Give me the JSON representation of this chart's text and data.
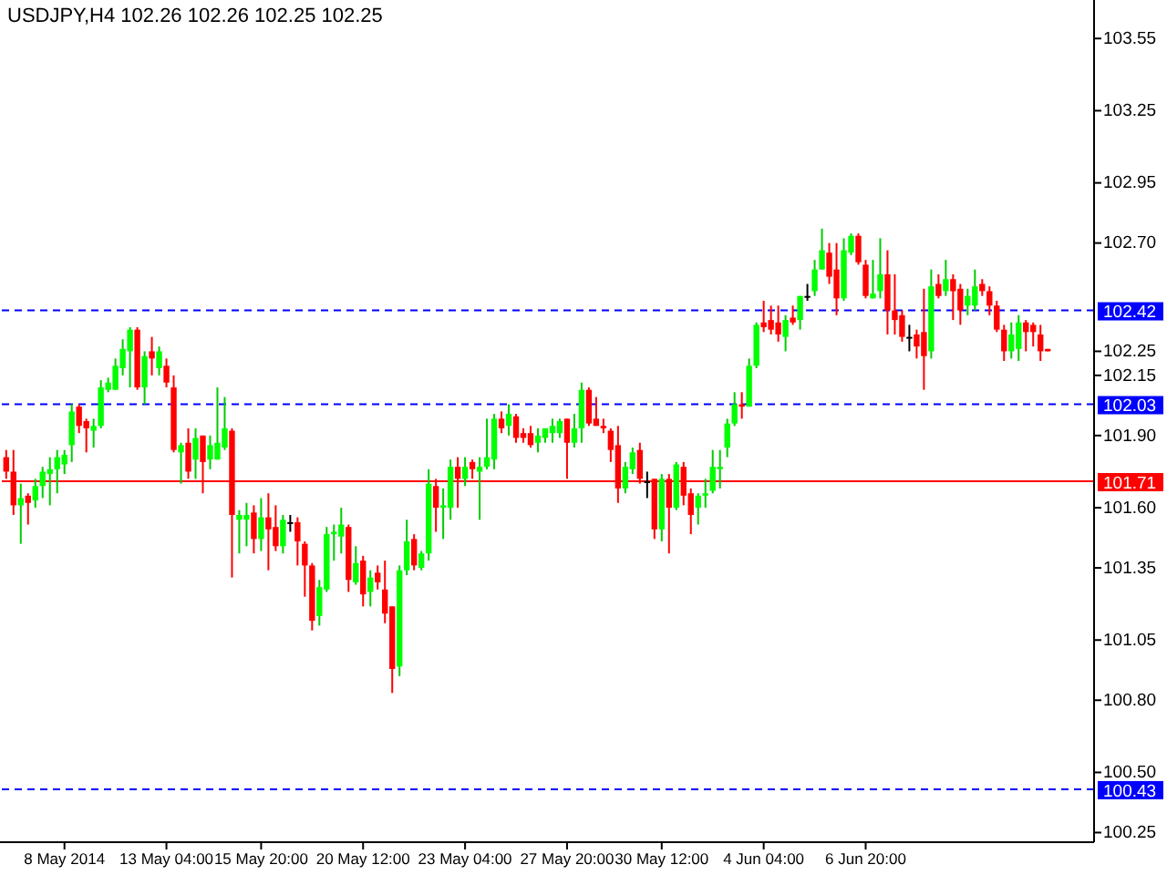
{
  "chart_data": {
    "type": "candlestick",
    "title": "USDJPY,H4  102.26 102.26 102.25 102.25",
    "categories": [
      null,
      null,
      null,
      null,
      null,
      null,
      null,
      null,
      "8 May 2014",
      null,
      null,
      null,
      null,
      null,
      null,
      null,
      null,
      null,
      null,
      null,
      null,
      null,
      "13 May 04:00",
      null,
      null,
      null,
      null,
      null,
      null,
      null,
      null,
      null,
      null,
      null,
      null,
      "15 May 20:00",
      null,
      null,
      null,
      null,
      null,
      null,
      null,
      null,
      null,
      null,
      null,
      null,
      null,
      "20 May 12:00",
      null,
      null,
      null,
      null,
      null,
      null,
      null,
      null,
      null,
      null,
      null,
      null,
      null,
      "23 May 04:00",
      null,
      null,
      null,
      null,
      null,
      null,
      null,
      null,
      null,
      null,
      null,
      null,
      null,
      "27 May 20:00",
      null,
      null,
      null,
      null,
      null,
      null,
      null,
      null,
      null,
      null,
      null,
      null,
      "30 May 12:00",
      null,
      null,
      null,
      null,
      null,
      null,
      null,
      null,
      null,
      null,
      null,
      null,
      null,
      "4 Jun 04:00",
      null,
      null,
      null,
      null,
      null,
      null,
      null,
      null,
      null,
      null,
      null,
      null,
      null,
      "6 Jun 20:00",
      null,
      null,
      null,
      null,
      null,
      null,
      null,
      null,
      null,
      null,
      null,
      null,
      null,
      null,
      null,
      null,
      null,
      null,
      null,
      null,
      null,
      null,
      null,
      null,
      null
    ],
    "ohlc": [
      [
        101.81,
        101.84,
        101.72,
        101.75
      ],
      [
        101.75,
        101.84,
        101.57,
        101.61
      ],
      [
        101.61,
        101.7,
        101.45,
        101.64
      ],
      [
        101.65,
        101.66,
        101.53,
        101.62
      ],
      [
        101.63,
        101.72,
        101.6,
        101.69
      ],
      [
        101.69,
        101.77,
        101.64,
        101.75
      ],
      [
        101.74,
        101.81,
        101.61,
        101.76
      ],
      [
        101.76,
        101.84,
        101.66,
        101.81
      ],
      [
        101.78,
        101.84,
        101.74,
        101.82
      ],
      [
        101.86,
        102.03,
        101.79,
        102.0
      ],
      [
        102.02,
        102.03,
        101.91,
        101.94
      ],
      [
        101.96,
        101.97,
        101.83,
        101.93
      ],
      [
        101.92,
        101.97,
        101.85,
        101.94
      ],
      [
        101.94,
        102.13,
        101.93,
        102.1
      ],
      [
        102.09,
        102.14,
        102.08,
        102.12
      ],
      [
        102.09,
        102.22,
        102.09,
        102.19
      ],
      [
        102.18,
        102.3,
        102.15,
        102.26
      ],
      [
        102.25,
        102.35,
        102.1,
        102.34
      ],
      [
        102.34,
        102.35,
        102.09,
        102.1
      ],
      [
        102.1,
        102.25,
        102.03,
        102.23
      ],
      [
        102.25,
        102.31,
        102.15,
        102.22
      ],
      [
        102.18,
        102.27,
        102.15,
        102.25
      ],
      [
        102.19,
        102.22,
        102.1,
        102.12
      ],
      [
        102.1,
        102.15,
        101.83,
        101.84
      ],
      [
        101.83,
        101.87,
        101.7,
        101.86
      ],
      [
        101.87,
        101.93,
        101.72,
        101.75
      ],
      [
        101.8,
        101.93,
        101.72,
        101.89
      ],
      [
        101.9,
        101.9,
        101.66,
        101.79
      ],
      [
        101.8,
        101.9,
        101.76,
        101.86
      ],
      [
        101.8,
        102.1,
        101.8,
        101.87
      ],
      [
        101.85,
        102.06,
        101.84,
        101.93
      ],
      [
        101.92,
        101.93,
        101.31,
        101.57
      ],
      [
        101.55,
        101.59,
        101.41,
        101.57
      ],
      [
        101.55,
        101.62,
        101.44,
        101.57
      ],
      [
        101.58,
        101.61,
        101.41,
        101.47
      ],
      [
        101.47,
        101.64,
        101.42,
        101.56
      ],
      [
        101.56,
        101.66,
        101.34,
        101.51
      ],
      [
        101.52,
        101.61,
        101.42,
        101.44
      ],
      [
        101.44,
        101.57,
        101.41,
        101.55
      ],
      [
        101.54,
        101.57,
        101.5,
        101.54
      ],
      [
        101.54,
        101.56,
        101.36,
        101.46
      ],
      [
        101.45,
        101.46,
        101.23,
        101.36
      ],
      [
        101.36,
        101.37,
        101.09,
        101.13
      ],
      [
        101.15,
        101.3,
        101.11,
        101.27
      ],
      [
        101.26,
        101.52,
        101.25,
        101.49
      ],
      [
        101.49,
        101.53,
        101.38,
        101.5
      ],
      [
        101.48,
        101.6,
        101.41,
        101.53
      ],
      [
        101.52,
        101.53,
        101.25,
        101.3
      ],
      [
        101.29,
        101.44,
        101.28,
        101.37
      ],
      [
        101.38,
        101.4,
        101.19,
        101.24
      ],
      [
        101.25,
        101.34,
        101.19,
        101.31
      ],
      [
        101.33,
        101.36,
        101.26,
        101.29
      ],
      [
        101.26,
        101.38,
        101.12,
        101.16
      ],
      [
        101.19,
        101.19,
        100.83,
        100.93
      ],
      [
        100.94,
        101.36,
        100.9,
        101.34
      ],
      [
        101.34,
        101.55,
        101.32,
        101.46
      ],
      [
        101.47,
        101.49,
        101.34,
        101.36
      ],
      [
        101.35,
        101.42,
        101.34,
        101.41
      ],
      [
        101.41,
        101.76,
        101.38,
        101.7
      ],
      [
        101.69,
        101.72,
        101.5,
        101.6
      ],
      [
        101.6,
        101.68,
        101.47,
        101.61
      ],
      [
        101.6,
        101.8,
        101.55,
        101.77
      ],
      [
        101.77,
        101.81,
        101.6,
        101.72
      ],
      [
        101.72,
        101.81,
        101.69,
        101.77
      ],
      [
        101.79,
        101.8,
        101.72,
        101.76
      ],
      [
        101.75,
        101.81,
        101.55,
        101.77
      ],
      [
        101.77,
        101.97,
        101.76,
        101.81
      ],
      [
        101.8,
        101.99,
        101.76,
        101.97
      ],
      [
        101.97,
        102.0,
        101.91,
        101.93
      ],
      [
        101.94,
        102.03,
        101.9,
        101.99
      ],
      [
        101.98,
        101.99,
        101.87,
        101.89
      ],
      [
        101.91,
        101.93,
        101.87,
        101.89
      ],
      [
        101.91,
        101.94,
        101.85,
        101.86
      ],
      [
        101.87,
        101.93,
        101.83,
        101.9
      ],
      [
        101.89,
        101.93,
        101.87,
        101.93
      ],
      [
        101.91,
        101.97,
        101.87,
        101.94
      ],
      [
        101.91,
        101.97,
        101.89,
        101.96
      ],
      [
        101.97,
        101.97,
        101.72,
        101.87
      ],
      [
        101.87,
        101.99,
        101.85,
        101.93
      ],
      [
        101.93,
        102.12,
        101.87,
        102.09
      ],
      [
        102.09,
        102.1,
        101.94,
        101.95
      ],
      [
        101.97,
        102.06,
        101.94,
        101.94
      ],
      [
        101.94,
        101.97,
        101.91,
        101.93
      ],
      [
        101.92,
        101.93,
        101.79,
        101.84
      ],
      [
        101.86,
        101.94,
        101.62,
        101.68
      ],
      [
        101.68,
        101.79,
        101.66,
        101.77
      ],
      [
        101.76,
        101.85,
        101.74,
        101.83
      ],
      [
        101.84,
        101.87,
        101.7,
        101.72
      ],
      [
        101.71,
        101.75,
        101.64,
        101.71
      ],
      [
        101.72,
        101.72,
        101.47,
        101.51
      ],
      [
        101.51,
        101.74,
        101.46,
        101.72
      ],
      [
        101.72,
        101.74,
        101.41,
        101.6
      ],
      [
        101.6,
        101.79,
        101.59,
        101.78
      ],
      [
        101.77,
        101.79,
        101.61,
        101.65
      ],
      [
        101.66,
        101.68,
        101.49,
        101.57
      ],
      [
        101.6,
        101.66,
        101.53,
        101.65
      ],
      [
        101.65,
        101.72,
        101.6,
        101.66
      ],
      [
        101.67,
        101.84,
        101.66,
        101.77
      ],
      [
        101.76,
        101.84,
        101.68,
        101.77
      ],
      [
        101.85,
        101.97,
        101.81,
        101.95
      ],
      [
        101.95,
        102.08,
        101.94,
        102.03
      ],
      [
        102.03,
        102.08,
        101.97,
        102.02
      ],
      [
        102.02,
        102.22,
        102.02,
        102.19
      ],
      [
        102.19,
        102.37,
        102.18,
        102.36
      ],
      [
        102.37,
        102.46,
        102.33,
        102.35
      ],
      [
        102.38,
        102.44,
        102.32,
        102.34
      ],
      [
        102.37,
        102.44,
        102.29,
        102.32
      ],
      [
        102.31,
        102.4,
        102.25,
        102.38
      ],
      [
        102.39,
        102.44,
        102.36,
        102.37
      ],
      [
        102.38,
        102.48,
        102.34,
        102.48
      ],
      [
        102.48,
        102.53,
        102.46,
        102.48
      ],
      [
        102.5,
        102.63,
        102.48,
        102.59
      ],
      [
        102.59,
        102.76,
        102.59,
        102.67
      ],
      [
        102.66,
        102.7,
        102.53,
        102.56
      ],
      [
        102.59,
        102.7,
        102.4,
        102.47
      ],
      [
        102.47,
        102.72,
        102.46,
        102.67
      ],
      [
        102.66,
        102.74,
        102.65,
        102.73
      ],
      [
        102.73,
        102.74,
        102.61,
        102.62
      ],
      [
        102.61,
        102.63,
        102.47,
        102.48
      ],
      [
        102.47,
        102.63,
        102.47,
        102.49
      ],
      [
        102.5,
        102.72,
        102.47,
        102.57
      ],
      [
        102.57,
        102.67,
        102.32,
        102.42
      ],
      [
        102.42,
        102.57,
        102.32,
        102.38
      ],
      [
        102.4,
        102.42,
        102.29,
        102.31
      ],
      [
        102.31,
        102.36,
        102.25,
        102.31
      ],
      [
        102.32,
        102.34,
        102.22,
        102.27
      ],
      [
        102.33,
        102.51,
        102.09,
        102.23
      ],
      [
        102.25,
        102.59,
        102.22,
        102.52
      ],
      [
        102.53,
        102.57,
        102.47,
        102.48
      ],
      [
        102.5,
        102.63,
        102.48,
        102.55
      ],
      [
        102.55,
        102.57,
        102.38,
        102.5
      ],
      [
        102.51,
        102.53,
        102.36,
        102.42
      ],
      [
        102.44,
        102.51,
        102.4,
        102.48
      ],
      [
        102.44,
        102.59,
        102.42,
        102.52
      ],
      [
        102.53,
        102.55,
        102.48,
        102.5
      ],
      [
        102.5,
        102.52,
        102.4,
        102.44
      ],
      [
        102.44,
        102.46,
        102.33,
        102.34
      ],
      [
        102.34,
        102.36,
        102.21,
        102.25
      ],
      [
        102.25,
        102.37,
        102.22,
        102.32
      ],
      [
        102.26,
        102.4,
        102.21,
        102.37
      ],
      [
        102.37,
        102.38,
        102.25,
        102.33
      ],
      [
        102.36,
        102.37,
        102.27,
        102.33
      ],
      [
        102.32,
        102.36,
        102.21,
        102.25
      ],
      [
        102.26,
        102.26,
        102.25,
        102.25
      ]
    ],
    "ylim": [
      100.21,
      103.71
    ],
    "yticks": [
      103.55,
      103.25,
      102.95,
      {
        "value": 102.7,
        "label": "102.70"
      },
      102.25,
      102.15,
      {
        "value": 101.9,
        "label": "101.90"
      },
      {
        "value": 101.6,
        "label": "101.60"
      },
      101.35,
      101.05,
      {
        "value": 100.8,
        "label": "100.80"
      },
      {
        "value": 100.5,
        "label": "100.50"
      },
      100.25
    ],
    "ref_lines": [
      {
        "axis": "y",
        "value": 102.42,
        "label": "102.42",
        "color": "#0000ff",
        "line_style": "dashed"
      },
      {
        "axis": "y",
        "value": 102.03,
        "label": "102.03",
        "color": "#0000ff",
        "line_style": "dashed"
      },
      {
        "axis": "y",
        "value": 101.71,
        "label": "101.71",
        "color": "#ff0000",
        "line_style": "solid"
      },
      {
        "axis": "y",
        "value": 100.43,
        "label": "100.43",
        "color": "#0000ff",
        "line_style": "dashed"
      }
    ],
    "grid": false
  }
}
